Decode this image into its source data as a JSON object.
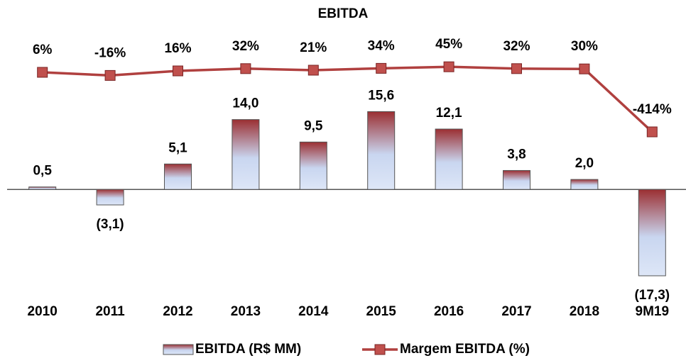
{
  "chart_data": {
    "type": "combo",
    "title": "EBITDA",
    "categories": [
      "2010",
      "2011",
      "2012",
      "2013",
      "2014",
      "2015",
      "2016",
      "2017",
      "2018",
      "9M19"
    ],
    "series": [
      {
        "name": "EBITDA (R$ MM)",
        "type": "bar",
        "color": "#a0393b",
        "values": [
          0.5,
          -3.1,
          5.1,
          14.0,
          9.5,
          15.6,
          12.1,
          3.8,
          2.0,
          -17.3
        ],
        "value_labels": [
          "0,5",
          "(3,1)",
          "5,1",
          "14,0",
          "9,5",
          "15,6",
          "12,1",
          "3,8",
          "2,0",
          "(17,3)"
        ]
      },
      {
        "name": "Margem EBITDA (%)",
        "type": "line",
        "axis": "y2",
        "color": "#b0403f",
        "values": [
          6,
          -16,
          16,
          32,
          21,
          34,
          45,
          32,
          30,
          -414
        ],
        "value_labels": [
          "6%",
          "-16%",
          "16%",
          "32%",
          "21%",
          "34%",
          "45%",
          "32%",
          "30%",
          "-414%"
        ]
      }
    ],
    "ylim": [
      -20,
      30
    ],
    "y2lim": [
      -1524,
      236
    ],
    "legend": "bottom"
  }
}
